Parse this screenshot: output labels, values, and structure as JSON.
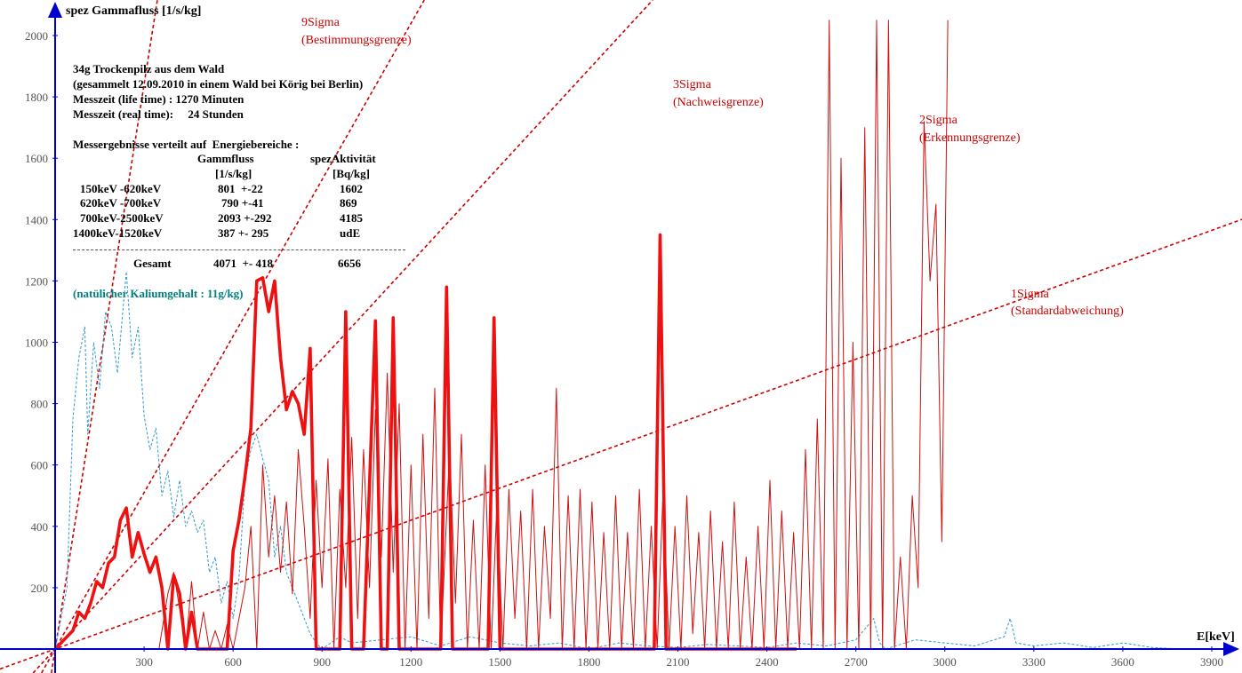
{
  "chart_data": {
    "type": "line",
    "ylabel": "spez Gammafluss [1/s/kg]",
    "xlabel": "E[keV]",
    "xlim": [
      0,
      3950
    ],
    "ylim": [
      0,
      2050
    ],
    "x_ticks": [
      300,
      600,
      900,
      1200,
      1500,
      1800,
      2100,
      2400,
      2700,
      3000,
      3300,
      3600,
      3900
    ],
    "y_ticks": [
      200,
      400,
      600,
      800,
      1000,
      1200,
      1400,
      1600,
      1800,
      2000
    ],
    "grid": false,
    "colors": {
      "measurement": "#ee1111",
      "thin": "#cc1111",
      "kalium": "#3399cc",
      "sigma": "#cc0000",
      "axis": "#0000cc"
    },
    "series": [
      {
        "name": "",
        "style": "thick-red",
        "points": [
          [
            0,
            0
          ],
          [
            60,
            60
          ],
          [
            80,
            120
          ],
          [
            100,
            100
          ],
          [
            120,
            150
          ],
          [
            140,
            220
          ],
          [
            160,
            200
          ],
          [
            180,
            280
          ],
          [
            200,
            300
          ],
          [
            220,
            420
          ],
          [
            240,
            460
          ],
          [
            260,
            300
          ],
          [
            280,
            380
          ],
          [
            300,
            310
          ],
          [
            320,
            250
          ],
          [
            340,
            300
          ],
          [
            360,
            200
          ],
          [
            380,
            0
          ],
          [
            400,
            240
          ],
          [
            420,
            180
          ],
          [
            440,
            0
          ],
          [
            460,
            120
          ],
          [
            480,
            0
          ],
          [
            500,
            0
          ],
          [
            540,
            0
          ],
          [
            580,
            0
          ],
          [
            600,
            320
          ],
          [
            620,
            420
          ],
          [
            640,
            560
          ],
          [
            660,
            720
          ],
          [
            680,
            1200
          ],
          [
            700,
            1210
          ],
          [
            720,
            1100
          ],
          [
            740,
            1200
          ],
          [
            760,
            950
          ],
          [
            780,
            780
          ],
          [
            800,
            840
          ],
          [
            820,
            800
          ],
          [
            840,
            700
          ],
          [
            860,
            980
          ],
          [
            880,
            0
          ],
          [
            900,
            0
          ],
          [
            960,
            0
          ],
          [
            980,
            1100
          ],
          [
            1000,
            0
          ],
          [
            1040,
            0
          ],
          [
            1080,
            1070
          ],
          [
            1100,
            0
          ],
          [
            1120,
            0
          ],
          [
            1140,
            1080
          ],
          [
            1160,
            0
          ],
          [
            1300,
            0
          ],
          [
            1320,
            1180
          ],
          [
            1340,
            0
          ],
          [
            1460,
            0
          ],
          [
            1480,
            1080
          ],
          [
            1500,
            0
          ],
          [
            2020,
            0
          ],
          [
            2040,
            1350
          ],
          [
            2060,
            0
          ],
          [
            2500,
            0
          ]
        ]
      },
      {
        "name": "",
        "style": "thin-red",
        "points": [
          [
            350,
            0
          ],
          [
            380,
            180
          ],
          [
            400,
            250
          ],
          [
            420,
            130
          ],
          [
            440,
            0
          ],
          [
            460,
            220
          ],
          [
            480,
            0
          ],
          [
            500,
            120
          ],
          [
            520,
            0
          ],
          [
            540,
            60
          ],
          [
            560,
            0
          ],
          [
            580,
            80
          ],
          [
            600,
            0
          ],
          [
            640,
            200
          ],
          [
            660,
            400
          ],
          [
            680,
            0
          ],
          [
            700,
            600
          ],
          [
            720,
            300
          ],
          [
            740,
            500
          ],
          [
            760,
            250
          ],
          [
            780,
            480
          ],
          [
            800,
            180
          ],
          [
            820,
            650
          ],
          [
            840,
            400
          ],
          [
            860,
            100
          ],
          [
            880,
            550
          ],
          [
            900,
            200
          ],
          [
            920,
            620
          ],
          [
            940,
            0
          ],
          [
            960,
            520
          ],
          [
            980,
            200
          ],
          [
            1000,
            690
          ],
          [
            1020,
            100
          ],
          [
            1040,
            650
          ],
          [
            1060,
            200
          ],
          [
            1080,
            780
          ],
          [
            1100,
            300
          ],
          [
            1120,
            900
          ],
          [
            1140,
            250
          ],
          [
            1160,
            800
          ],
          [
            1180,
            0
          ],
          [
            1200,
            600
          ],
          [
            1220,
            0
          ],
          [
            1240,
            700
          ],
          [
            1260,
            100
          ],
          [
            1280,
            850
          ],
          [
            1300,
            0
          ],
          [
            1330,
            650
          ],
          [
            1350,
            150
          ],
          [
            1370,
            700
          ],
          [
            1390,
            0
          ],
          [
            1410,
            420
          ],
          [
            1430,
            0
          ],
          [
            1450,
            600
          ],
          [
            1470,
            0
          ],
          [
            1490,
            480
          ],
          [
            1510,
            0
          ],
          [
            1530,
            520
          ],
          [
            1550,
            100
          ],
          [
            1570,
            450
          ],
          [
            1590,
            0
          ],
          [
            1610,
            520
          ],
          [
            1630,
            0
          ],
          [
            1650,
            400
          ],
          [
            1670,
            100
          ],
          [
            1690,
            850
          ],
          [
            1710,
            0
          ],
          [
            1730,
            500
          ],
          [
            1750,
            0
          ],
          [
            1770,
            520
          ],
          [
            1790,
            0
          ],
          [
            1810,
            480
          ],
          [
            1830,
            0
          ],
          [
            1850,
            380
          ],
          [
            1870,
            0
          ],
          [
            1890,
            500
          ],
          [
            1910,
            0
          ],
          [
            1930,
            380
          ],
          [
            1950,
            0
          ],
          [
            1970,
            520
          ],
          [
            1990,
            0
          ],
          [
            2010,
            400
          ],
          [
            2030,
            0
          ],
          [
            2050,
            520
          ],
          [
            2070,
            0
          ],
          [
            2090,
            400
          ],
          [
            2110,
            0
          ],
          [
            2130,
            500
          ],
          [
            2150,
            50
          ],
          [
            2170,
            380
          ],
          [
            2190,
            0
          ],
          [
            2210,
            450
          ],
          [
            2230,
            0
          ],
          [
            2250,
            350
          ],
          [
            2270,
            0
          ],
          [
            2290,
            480
          ],
          [
            2310,
            0
          ],
          [
            2330,
            300
          ],
          [
            2350,
            0
          ],
          [
            2370,
            400
          ],
          [
            2390,
            0
          ],
          [
            2410,
            550
          ],
          [
            2430,
            0
          ],
          [
            2450,
            450
          ],
          [
            2470,
            0
          ],
          [
            2490,
            380
          ],
          [
            2510,
            0
          ],
          [
            2530,
            650
          ],
          [
            2550,
            0
          ],
          [
            2570,
            750
          ],
          [
            2590,
            0
          ],
          [
            2610,
            2050
          ],
          [
            2630,
            0
          ],
          [
            2650,
            1600
          ],
          [
            2670,
            0
          ],
          [
            2690,
            1000
          ],
          [
            2710,
            0
          ],
          [
            2730,
            1700
          ],
          [
            2750,
            0
          ],
          [
            2770,
            2050
          ],
          [
            2790,
            0
          ],
          [
            2810,
            2050
          ],
          [
            2830,
            0
          ],
          [
            2850,
            300
          ],
          [
            2870,
            0
          ],
          [
            2890,
            500
          ],
          [
            2910,
            200
          ],
          [
            2930,
            1720
          ],
          [
            2950,
            1200
          ],
          [
            2970,
            1450
          ],
          [
            2990,
            350
          ],
          [
            3010,
            2050
          ]
        ]
      },
      {
        "name": "",
        "style": "dashed-blue",
        "points": [
          [
            0,
            0
          ],
          [
            40,
            200
          ],
          [
            60,
            750
          ],
          [
            80,
            950
          ],
          [
            100,
            1050
          ],
          [
            110,
            700
          ],
          [
            130,
            1000
          ],
          [
            150,
            850
          ],
          [
            170,
            1100
          ],
          [
            190,
            1050
          ],
          [
            210,
            900
          ],
          [
            230,
            1120
          ],
          [
            240,
            1230
          ],
          [
            260,
            950
          ],
          [
            280,
            1050
          ],
          [
            300,
            760
          ],
          [
            320,
            650
          ],
          [
            340,
            720
          ],
          [
            360,
            500
          ],
          [
            380,
            580
          ],
          [
            400,
            430
          ],
          [
            420,
            550
          ],
          [
            440,
            400
          ],
          [
            460,
            450
          ],
          [
            480,
            380
          ],
          [
            500,
            420
          ],
          [
            520,
            250
          ],
          [
            540,
            300
          ],
          [
            560,
            150
          ],
          [
            580,
            220
          ],
          [
            600,
            100
          ],
          [
            620,
            230
          ],
          [
            640,
            550
          ],
          [
            660,
            650
          ],
          [
            680,
            700
          ],
          [
            700,
            620
          ],
          [
            720,
            550
          ],
          [
            740,
            300
          ],
          [
            760,
            400
          ],
          [
            780,
            250
          ],
          [
            800,
            200
          ],
          [
            820,
            150
          ],
          [
            840,
            100
          ],
          [
            860,
            50
          ],
          [
            880,
            20
          ],
          [
            900,
            0
          ],
          [
            960,
            40
          ],
          [
            1000,
            20
          ],
          [
            1100,
            30
          ],
          [
            1200,
            40
          ],
          [
            1300,
            10
          ],
          [
            1400,
            40
          ],
          [
            1500,
            20
          ],
          [
            1600,
            10
          ],
          [
            1700,
            20
          ],
          [
            1800,
            0
          ],
          [
            1900,
            20
          ],
          [
            2000,
            10
          ],
          [
            2100,
            5
          ],
          [
            2200,
            15
          ],
          [
            2300,
            10
          ],
          [
            2400,
            5
          ],
          [
            2500,
            20
          ],
          [
            2600,
            10
          ],
          [
            2700,
            30
          ],
          [
            2760,
            100
          ],
          [
            2780,
            20
          ],
          [
            2800,
            0
          ],
          [
            2900,
            30
          ],
          [
            3000,
            20
          ],
          [
            3100,
            10
          ],
          [
            3200,
            40
          ],
          [
            3220,
            100
          ],
          [
            3240,
            20
          ],
          [
            3300,
            10
          ],
          [
            3400,
            20
          ],
          [
            3500,
            5
          ],
          [
            3600,
            20
          ],
          [
            3700,
            5
          ],
          [
            3800,
            0
          ]
        ]
      }
    ],
    "reference_lines": [
      {
        "name": "9Sigma",
        "slope": 6.14
      },
      {
        "name": "3Sigma",
        "slope": 1.7
      },
      {
        "name": "2Sigma",
        "slope": 1.05
      },
      {
        "name": "1Sigma",
        "slope": 0.35
      }
    ],
    "annotations": {
      "sigma9": [
        "9Sigma",
        "(Bestimmungsgrenze)"
      ],
      "sigma3": [
        "3Sigma",
        "(Nachweisgrenze)"
      ],
      "sigma2": [
        "2Sigma",
        "(Erkennungsgrenze)"
      ],
      "sigma1": [
        "1Sigma",
        "(Standardabweichung)"
      ]
    },
    "info": {
      "line1": "34g Trockenpilz aus dem Wald",
      "line2": "(gesammelt 12.09.2010 in einem Wald bei Körig bei Berlin)",
      "line3": "Messzeit (life time) : 1270 Minuten",
      "line4": "Messzeit (real time):     24 Stunden",
      "line5": "Messergebnisse verteilt auf  Energiebereiche :",
      "col_gamma": "Gammfluss",
      "col_gamma_unit": "[1/s/kg]",
      "col_activity": "spezAktivität",
      "col_activity_unit": "[Bq/kg]",
      "rows": [
        {
          "range": "150keV -620keV",
          "gamma": "801  +-22",
          "activity": "1602"
        },
        {
          "range": "620keV -700keV",
          "gamma": "790 +-41",
          "activity": "869"
        },
        {
          "range": "700keV-2500keV",
          "gamma": "2093 +-292",
          "activity": "4185"
        },
        {
          "range": "1400keV-1520keV",
          "gamma": "387 +- 295",
          "activity": "udE"
        }
      ],
      "total_label": "Gesamt",
      "total_gamma": "4071  +- 418",
      "total_activity": "6656",
      "kalium": "(natülicher Kaliumgehalt : 11g/kg)"
    }
  }
}
